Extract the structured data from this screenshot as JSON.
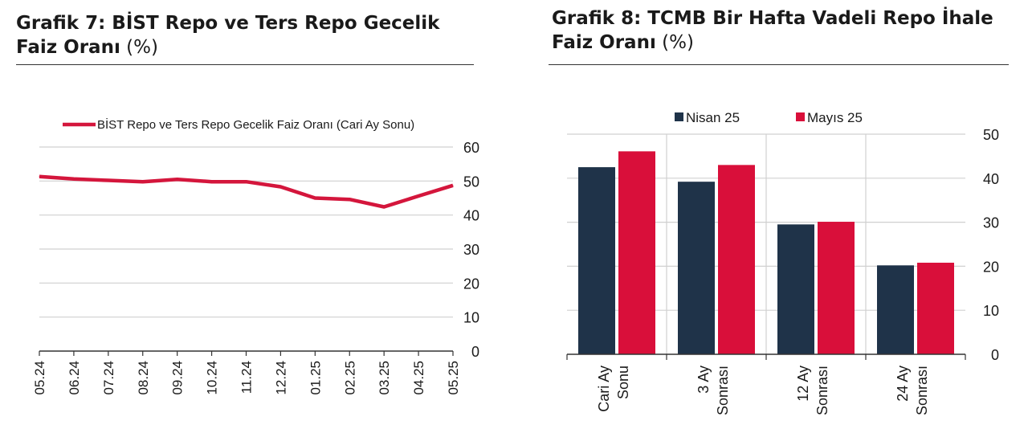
{
  "charts": {
    "left": {
      "title_bold": "Grafik 7:  BİST Repo ve Ters Repo Gecelik Faiz Oranı",
      "title_unit": "(%)"
    },
    "right": {
      "title_bold": "Grafik 8: TCMB Bir Hafta Vadeli Repo İhale Faiz Oranı",
      "title_unit": "(%)"
    }
  },
  "colors": {
    "line": "#d4163c",
    "nisan": "#1f3349",
    "mayis": "#d90f3a",
    "grid": "#d0d0d0",
    "axis": "#333333"
  },
  "chart_data": [
    {
      "type": "line",
      "title": "Grafik 7:  BİST Repo ve Ters Repo Gecelik Faiz Oranı (%)",
      "x": [
        "05.24",
        "06.24",
        "07.24",
        "08.24",
        "09.24",
        "10.24",
        "11.24",
        "12.24",
        "01.25",
        "02.25",
        "03.25",
        "04.25",
        "05.25"
      ],
      "series": [
        {
          "name": "BİST Repo ve Ters Repo Gecelik Faiz Oranı (Cari Ay Sonu)",
          "values": [
            51.3,
            50.6,
            50.2,
            49.8,
            50.5,
            49.8,
            49.8,
            48.3,
            45.0,
            44.6,
            42.4,
            45.6,
            48.7
          ]
        }
      ],
      "ylim": [
        0,
        60
      ],
      "yticks": [
        0,
        10,
        20,
        30,
        40,
        50,
        60
      ],
      "legend": "top",
      "grid": true
    },
    {
      "type": "bar",
      "title": "Grafik 8: TCMB Bir Hafta Vadeli Repo İhale Faiz Oranı (%)",
      "categories": [
        [
          "Cari Ay",
          "Sonu"
        ],
        [
          "3 Ay",
          "Sonrası"
        ],
        [
          "12 Ay",
          "Sonrası"
        ],
        [
          "24 Ay",
          "Sonrası"
        ]
      ],
      "series": [
        {
          "name": "Nisan 25",
          "values": [
            42.5,
            39.2,
            29.5,
            20.2
          ]
        },
        {
          "name": "Mayıs 25",
          "values": [
            46.1,
            43.0,
            30.1,
            20.8
          ]
        }
      ],
      "ylim": [
        0,
        50
      ],
      "yticks": [
        0,
        10,
        20,
        30,
        40,
        50
      ],
      "legend": "top",
      "grid": true
    }
  ]
}
